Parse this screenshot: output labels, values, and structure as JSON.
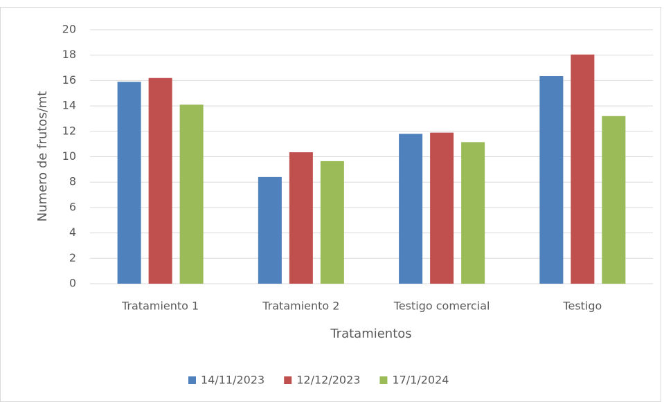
{
  "chart_data": {
    "type": "bar",
    "xlabel": "Tratamientos",
    "ylabel": "Numero de frutos/mt",
    "categories": [
      "Tratamiento 1",
      "Tratamiento 2",
      "Testigo comercial",
      "Testigo"
    ],
    "series": [
      {
        "name": "14/11/2023",
        "color": "#4f81bd",
        "values": [
          15.9,
          8.4,
          11.8,
          16.35
        ]
      },
      {
        "name": "12/12/2023",
        "color": "#c0504d",
        "values": [
          16.2,
          10.35,
          11.9,
          18.05
        ]
      },
      {
        "name": "17/1/2024",
        "color": "#9bbb59",
        "values": [
          14.1,
          9.65,
          11.15,
          13.2
        ]
      }
    ],
    "ylim": [
      0,
      20
    ],
    "yticks": [
      0,
      2,
      4,
      6,
      8,
      10,
      12,
      14,
      16,
      18,
      20
    ],
    "grid": true,
    "legend": "bottom"
  }
}
